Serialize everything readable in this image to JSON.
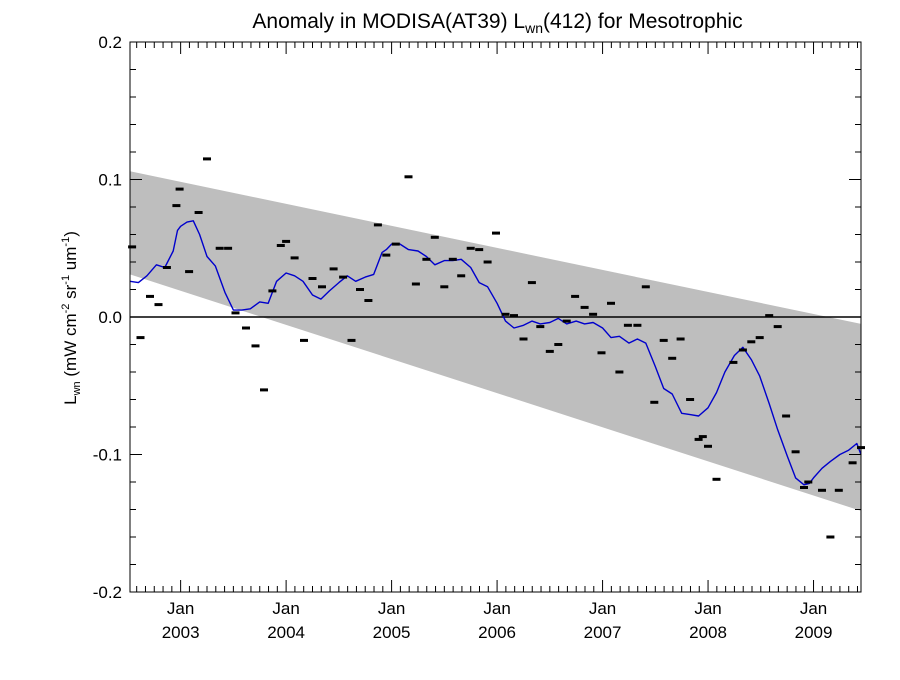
{
  "chart_data": {
    "type": "line",
    "title": {
      "prefix": "Anomaly in MODISA(AT39) L",
      "subscript": "wn",
      "suffix": "(412) for Mesotrophic"
    },
    "ylabel": {
      "L": "L",
      "wn": "wn",
      "open": " (mW cm",
      "exp1": "-2",
      "sr": " sr",
      "exp2": "-1",
      "um": " um",
      "exp3": "-1",
      "close": ")"
    },
    "xlim": [
      2002.52,
      2009.45
    ],
    "ylim": [
      -0.2,
      0.2
    ],
    "y_ticks": [
      {
        "v": 0.2,
        "label": "0.2"
      },
      {
        "v": 0.1,
        "label": "0.1"
      },
      {
        "v": 0.0,
        "label": "0.0"
      },
      {
        "v": -0.1,
        "label": "-0.1"
      },
      {
        "v": -0.2,
        "label": "-0.2"
      }
    ],
    "x_ticks": [
      {
        "v": 2003.0,
        "month": "Jan",
        "year": "2003"
      },
      {
        "v": 2004.0,
        "month": "Jan",
        "year": "2004"
      },
      {
        "v": 2005.0,
        "month": "Jan",
        "year": "2005"
      },
      {
        "v": 2006.0,
        "month": "Jan",
        "year": "2006"
      },
      {
        "v": 2007.0,
        "month": "Jan",
        "year": "2007"
      },
      {
        "v": 2008.0,
        "month": "Jan",
        "year": "2008"
      },
      {
        "v": 2009.0,
        "month": "Jan",
        "year": "2009"
      }
    ],
    "zero_line": 0.0,
    "band": {
      "start": {
        "x": 2002.52,
        "upper": 0.106,
        "lower": 0.031
      },
      "end": {
        "x": 2009.45,
        "upper": -0.005,
        "lower": -0.141
      },
      "color": "#bebebe"
    },
    "points": [
      [
        2002.54,
        0.051
      ],
      [
        2002.62,
        -0.015
      ],
      [
        2002.71,
        0.015
      ],
      [
        2002.79,
        0.009
      ],
      [
        2002.87,
        0.036
      ],
      [
        2002.96,
        0.081
      ],
      [
        2002.99,
        0.093
      ],
      [
        2003.08,
        0.033
      ],
      [
        2003.17,
        0.076
      ],
      [
        2003.25,
        0.115
      ],
      [
        2003.37,
        0.05
      ],
      [
        2003.45,
        0.05
      ],
      [
        2003.52,
        0.003
      ],
      [
        2003.62,
        -0.008
      ],
      [
        2003.71,
        -0.021
      ],
      [
        2003.79,
        -0.053
      ],
      [
        2003.87,
        0.019
      ],
      [
        2003.95,
        0.052
      ],
      [
        2004.0,
        0.055
      ],
      [
        2004.08,
        0.043
      ],
      [
        2004.17,
        -0.017
      ],
      [
        2004.25,
        0.028
      ],
      [
        2004.34,
        0.022
      ],
      [
        2004.45,
        0.035
      ],
      [
        2004.54,
        0.029
      ],
      [
        2004.62,
        -0.017
      ],
      [
        2004.7,
        0.02
      ],
      [
        2004.78,
        0.012
      ],
      [
        2004.87,
        0.067
      ],
      [
        2004.95,
        0.045
      ],
      [
        2005.04,
        0.053
      ],
      [
        2005.16,
        0.102
      ],
      [
        2005.23,
        0.024
      ],
      [
        2005.33,
        0.042
      ],
      [
        2005.41,
        0.058
      ],
      [
        2005.5,
        0.022
      ],
      [
        2005.58,
        0.042
      ],
      [
        2005.66,
        0.03
      ],
      [
        2005.75,
        0.05
      ],
      [
        2005.83,
        0.049
      ],
      [
        2005.91,
        0.04
      ],
      [
        2005.99,
        0.061
      ],
      [
        2006.08,
        0.002
      ],
      [
        2006.16,
        0.001
      ],
      [
        2006.25,
        -0.016
      ],
      [
        2006.33,
        0.025
      ],
      [
        2006.41,
        -0.007
      ],
      [
        2006.5,
        -0.025
      ],
      [
        2006.58,
        -0.02
      ],
      [
        2006.66,
        -0.003
      ],
      [
        2006.74,
        0.015
      ],
      [
        2006.83,
        0.007
      ],
      [
        2006.91,
        0.002
      ],
      [
        2006.99,
        -0.026
      ],
      [
        2007.08,
        0.01
      ],
      [
        2007.16,
        -0.04
      ],
      [
        2007.24,
        -0.006
      ],
      [
        2007.33,
        -0.006
      ],
      [
        2007.41,
        0.022
      ],
      [
        2007.49,
        -0.062
      ],
      [
        2007.58,
        -0.017
      ],
      [
        2007.66,
        -0.03
      ],
      [
        2007.74,
        -0.016
      ],
      [
        2007.83,
        -0.06
      ],
      [
        2007.91,
        -0.089
      ],
      [
        2007.95,
        -0.087
      ],
      [
        2008.0,
        -0.094
      ],
      [
        2008.08,
        -0.118
      ],
      [
        2008.24,
        -0.033
      ],
      [
        2008.33,
        -0.024
      ],
      [
        2008.41,
        -0.018
      ],
      [
        2008.49,
        -0.015
      ],
      [
        2008.58,
        0.001
      ],
      [
        2008.66,
        -0.007
      ],
      [
        2008.74,
        -0.072
      ],
      [
        2008.83,
        -0.098
      ],
      [
        2008.91,
        -0.124
      ],
      [
        2008.95,
        -0.12
      ],
      [
        2009.08,
        -0.126
      ],
      [
        2009.16,
        -0.16
      ],
      [
        2009.24,
        -0.126
      ],
      [
        2009.37,
        -0.106
      ],
      [
        2009.45,
        -0.095
      ]
    ],
    "series": [
      {
        "color": "#0000cc",
        "x": [
          2002.52,
          2002.6,
          2002.68,
          2002.77,
          2002.85,
          2002.93,
          2002.97,
          2003.0,
          2003.06,
          2003.12,
          2003.18,
          2003.25,
          2003.33,
          2003.42,
          2003.5,
          2003.58,
          2003.66,
          2003.75,
          2003.83,
          2003.91,
          2004.0,
          2004.08,
          2004.16,
          2004.25,
          2004.33,
          2004.41,
          2004.5,
          2004.58,
          2004.66,
          2004.75,
          2004.83,
          2004.91,
          2004.95,
          2005.0,
          2005.08,
          2005.16,
          2005.25,
          2005.33,
          2005.41,
          2005.5,
          2005.58,
          2005.66,
          2005.75,
          2005.83,
          2005.91,
          2006.0,
          2006.08,
          2006.16,
          2006.25,
          2006.33,
          2006.41,
          2006.5,
          2006.58,
          2006.66,
          2006.75,
          2006.83,
          2006.91,
          2007.0,
          2007.08,
          2007.16,
          2007.25,
          2007.33,
          2007.41,
          2007.5,
          2007.58,
          2007.66,
          2007.75,
          2007.83,
          2007.91,
          2008.0,
          2008.08,
          2008.16,
          2008.25,
          2008.33,
          2008.41,
          2008.49,
          2008.58,
          2008.66,
          2008.75,
          2008.83,
          2008.91,
          2008.96,
          2009.0,
          2009.08,
          2009.16,
          2009.25,
          2009.33,
          2009.41,
          2009.45
        ],
        "y": [
          0.026,
          0.025,
          0.03,
          0.038,
          0.036,
          0.048,
          0.063,
          0.066,
          0.069,
          0.07,
          0.06,
          0.044,
          0.037,
          0.018,
          0.005,
          0.005,
          0.006,
          0.011,
          0.01,
          0.026,
          0.032,
          0.03,
          0.026,
          0.016,
          0.013,
          0.019,
          0.025,
          0.03,
          0.026,
          0.029,
          0.031,
          0.047,
          0.049,
          0.053,
          0.053,
          0.049,
          0.048,
          0.044,
          0.038,
          0.041,
          0.041,
          0.042,
          0.036,
          0.025,
          0.022,
          0.01,
          -0.003,
          -0.008,
          -0.006,
          -0.003,
          -0.005,
          -0.004,
          -0.001,
          -0.005,
          -0.003,
          -0.005,
          -0.004,
          -0.008,
          -0.015,
          -0.014,
          -0.019,
          -0.016,
          -0.019,
          -0.036,
          -0.052,
          -0.056,
          -0.07,
          -0.071,
          -0.072,
          -0.066,
          -0.055,
          -0.04,
          -0.028,
          -0.022,
          -0.031,
          -0.043,
          -0.063,
          -0.082,
          -0.101,
          -0.117,
          -0.122,
          -0.121,
          -0.117,
          -0.11,
          -0.105,
          -0.1,
          -0.097,
          -0.092,
          -0.1
        ]
      }
    ]
  }
}
